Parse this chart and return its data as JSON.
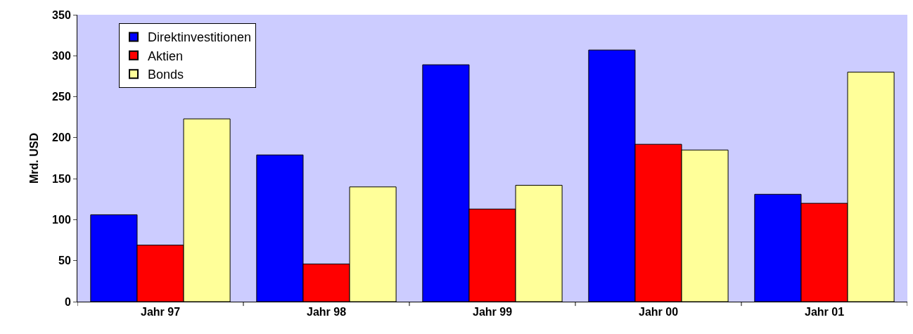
{
  "chart_data": {
    "type": "bar",
    "ylabel": "Mrd. USD",
    "categories": [
      "Jahr 97",
      "Jahr 98",
      "Jahr 99",
      "Jahr 00",
      "Jahr 01"
    ],
    "series": [
      {
        "name": "Direktinvestitionen",
        "color": "#0000ff",
        "values": [
          106,
          179,
          289,
          307,
          131
        ]
      },
      {
        "name": "Aktien",
        "color": "#ff0000",
        "values": [
          69,
          46,
          113,
          192,
          120
        ]
      },
      {
        "name": "Bonds",
        "color": "#ffff99",
        "values": [
          223,
          140,
          142,
          185,
          280
        ]
      }
    ],
    "ylim": [
      0,
      350
    ],
    "yticks": [
      0,
      50,
      100,
      150,
      200,
      250,
      300,
      350
    ],
    "grid": false,
    "legend": "top left"
  }
}
